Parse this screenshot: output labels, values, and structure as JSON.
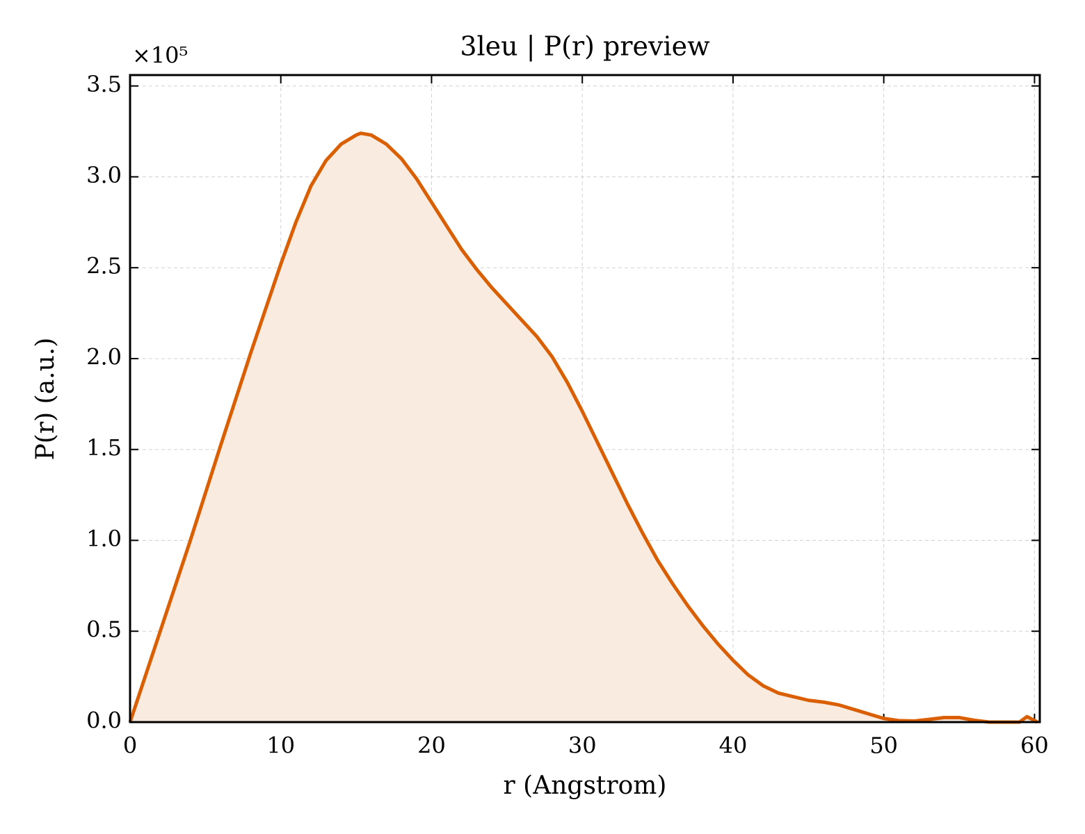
{
  "chart_data": {
    "type": "line",
    "title": "3leu | P(r) preview",
    "x_label": "r (Angstrom)",
    "y_label": "P(r) (a.u.)",
    "y_offset_label": "×10⁵",
    "x": [
      0,
      2,
      4,
      6,
      8,
      10,
      11,
      12,
      13,
      14,
      15,
      15.3,
      16,
      17,
      18,
      19,
      20,
      21,
      22,
      23,
      24,
      25,
      26,
      27,
      28,
      29,
      30,
      31,
      32,
      33,
      34,
      35,
      36,
      37,
      38,
      39,
      40,
      41,
      42,
      43,
      44,
      45,
      46,
      47,
      48,
      49,
      50,
      51,
      52,
      53,
      54,
      55,
      56,
      57,
      58,
      59,
      59.5,
      60.2
    ],
    "series": [
      {
        "color": "#d95f02",
        "fill": "#f9ebe0",
        "values": [
          0,
          0.5,
          1.0,
          1.52,
          2.03,
          2.52,
          2.75,
          2.95,
          3.09,
          3.18,
          3.23,
          3.24,
          3.23,
          3.18,
          3.1,
          2.99,
          2.86,
          2.73,
          2.6,
          2.49,
          2.39,
          2.3,
          2.21,
          2.12,
          2.01,
          1.87,
          1.71,
          1.54,
          1.37,
          1.2,
          1.04,
          0.89,
          0.76,
          0.64,
          0.53,
          0.43,
          0.34,
          0.26,
          0.2,
          0.16,
          0.14,
          0.12,
          0.11,
          0.095,
          0.07,
          0.045,
          0.02,
          0.008,
          0.006,
          0.015,
          0.025,
          0.025,
          0.01,
          0,
          0,
          0,
          0.03,
          0
        ]
      }
    ],
    "xlim": [
      0,
      60.35
    ],
    "ylim": [
      0,
      3.56
    ],
    "xticks": [
      0,
      10,
      20,
      30,
      40,
      50,
      60
    ],
    "yticks": [
      {
        "value": 0,
        "label": "0.0"
      },
      0.5,
      {
        "value": 1,
        "label": "1.0"
      },
      1.5,
      {
        "value": 2,
        "label": "2.0"
      },
      2.5,
      {
        "value": 3,
        "label": "3.0"
      },
      3.5
    ],
    "grid": true
  }
}
